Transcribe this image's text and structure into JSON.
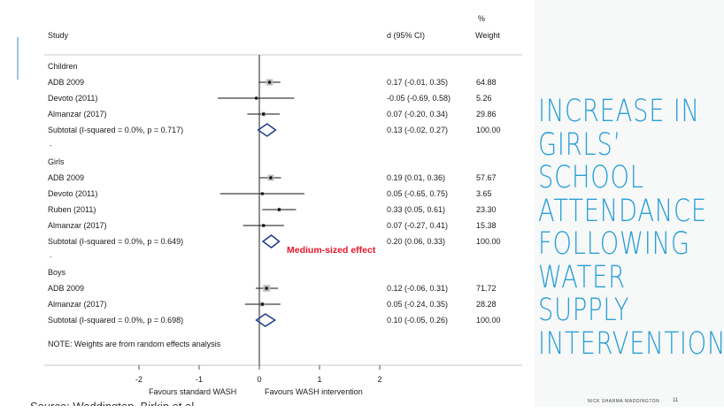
{
  "slide": {
    "headline": "INCREASE IN\nGIRLS’ SCHOOL\nATTENDANCE\nFOLLOWING\nWATER SUPPLY\nINTERVENTIONS",
    "footer_author": "NICK SHARMA WADDINGTON",
    "footer_page": "11",
    "source_text": "Source: Waddington, Birkin et al.",
    "annotation": "Medium-sized effect",
    "annotation_color": "#e8162a",
    "headline_color": "#2a9fd8"
  },
  "chart_data": {
    "type": "forest",
    "header": {
      "study": "Study",
      "effect": "d (95% CI)",
      "weight_top": "%",
      "weight": "Weight"
    },
    "xlim": [
      -2,
      2
    ],
    "xticks": [
      "-2",
      "-1",
      "0",
      "1",
      "2"
    ],
    "xlabel_left": "Favours standard WASH",
    "xlabel_right": "Favours WASH intervention",
    "note": "NOTE: Weights are from random effects analysis",
    "groups": [
      {
        "name": "Children",
        "studies": [
          {
            "label": "ADB 2009",
            "est": 0.17,
            "lo": -0.01,
            "hi": 0.35,
            "ci": "0.17 (-0.01, 0.35)",
            "weight": "64.88"
          },
          {
            "label": "Devoto (2011)",
            "est": -0.05,
            "lo": -0.69,
            "hi": 0.58,
            "ci": "-0.05 (-0.69, 0.58)",
            "weight": "5.26"
          },
          {
            "label": "Almanzar (2017)",
            "est": 0.07,
            "lo": -0.2,
            "hi": 0.34,
            "ci": "0.07 (-0.20, 0.34)",
            "weight": "29.86"
          }
        ],
        "subtotal": {
          "label": "Subtotal  (I-squared = 0.0%, p = 0.717)",
          "est": 0.13,
          "lo": -0.02,
          "hi": 0.27,
          "ci": "0.13 (-0.02, 0.27)",
          "weight": "100.00"
        },
        "dot": "."
      },
      {
        "name": "Girls",
        "studies": [
          {
            "label": "ADB 2009",
            "est": 0.19,
            "lo": 0.01,
            "hi": 0.36,
            "ci": "0.19 (0.01, 0.36)",
            "weight": "57.67"
          },
          {
            "label": "Devoto (2011)",
            "est": 0.05,
            "lo": -0.65,
            "hi": 0.75,
            "ci": "0.05 (-0.65, 0.75)",
            "weight": "3.65"
          },
          {
            "label": "Ruben (2011)",
            "est": 0.33,
            "lo": 0.05,
            "hi": 0.61,
            "ci": "0.33 (0.05, 0.61)",
            "weight": "23.30"
          },
          {
            "label": "Almanzar (2017)",
            "est": 0.07,
            "lo": -0.27,
            "hi": 0.41,
            "ci": "0.07 (-0.27, 0.41)",
            "weight": "15.38"
          }
        ],
        "subtotal": {
          "label": "Subtotal  (I-squared = 0.0%, p = 0.649)",
          "est": 0.2,
          "lo": 0.06,
          "hi": 0.33,
          "ci": "0.20 (0.06, 0.33)",
          "weight": "100.00"
        },
        "dot": "."
      },
      {
        "name": "Boys",
        "studies": [
          {
            "label": "ADB 2009",
            "est": 0.12,
            "lo": -0.06,
            "hi": 0.31,
            "ci": "0.12 (-0.06, 0.31)",
            "weight": "71.72"
          },
          {
            "label": "Almanzar (2017)",
            "est": 0.05,
            "lo": -0.24,
            "hi": 0.35,
            "ci": "0.05 (-0.24, 0.35)",
            "weight": "28.28"
          }
        ],
        "subtotal": {
          "label": "Subtotal  (I-squared = 0.0%, p = 0.698)",
          "est": 0.1,
          "lo": -0.05,
          "hi": 0.26,
          "ci": "0.10 (-0.05, 0.26)",
          "weight": "100.00"
        },
        "dot": ""
      }
    ],
    "diamond_color": "#1e3a8a"
  }
}
